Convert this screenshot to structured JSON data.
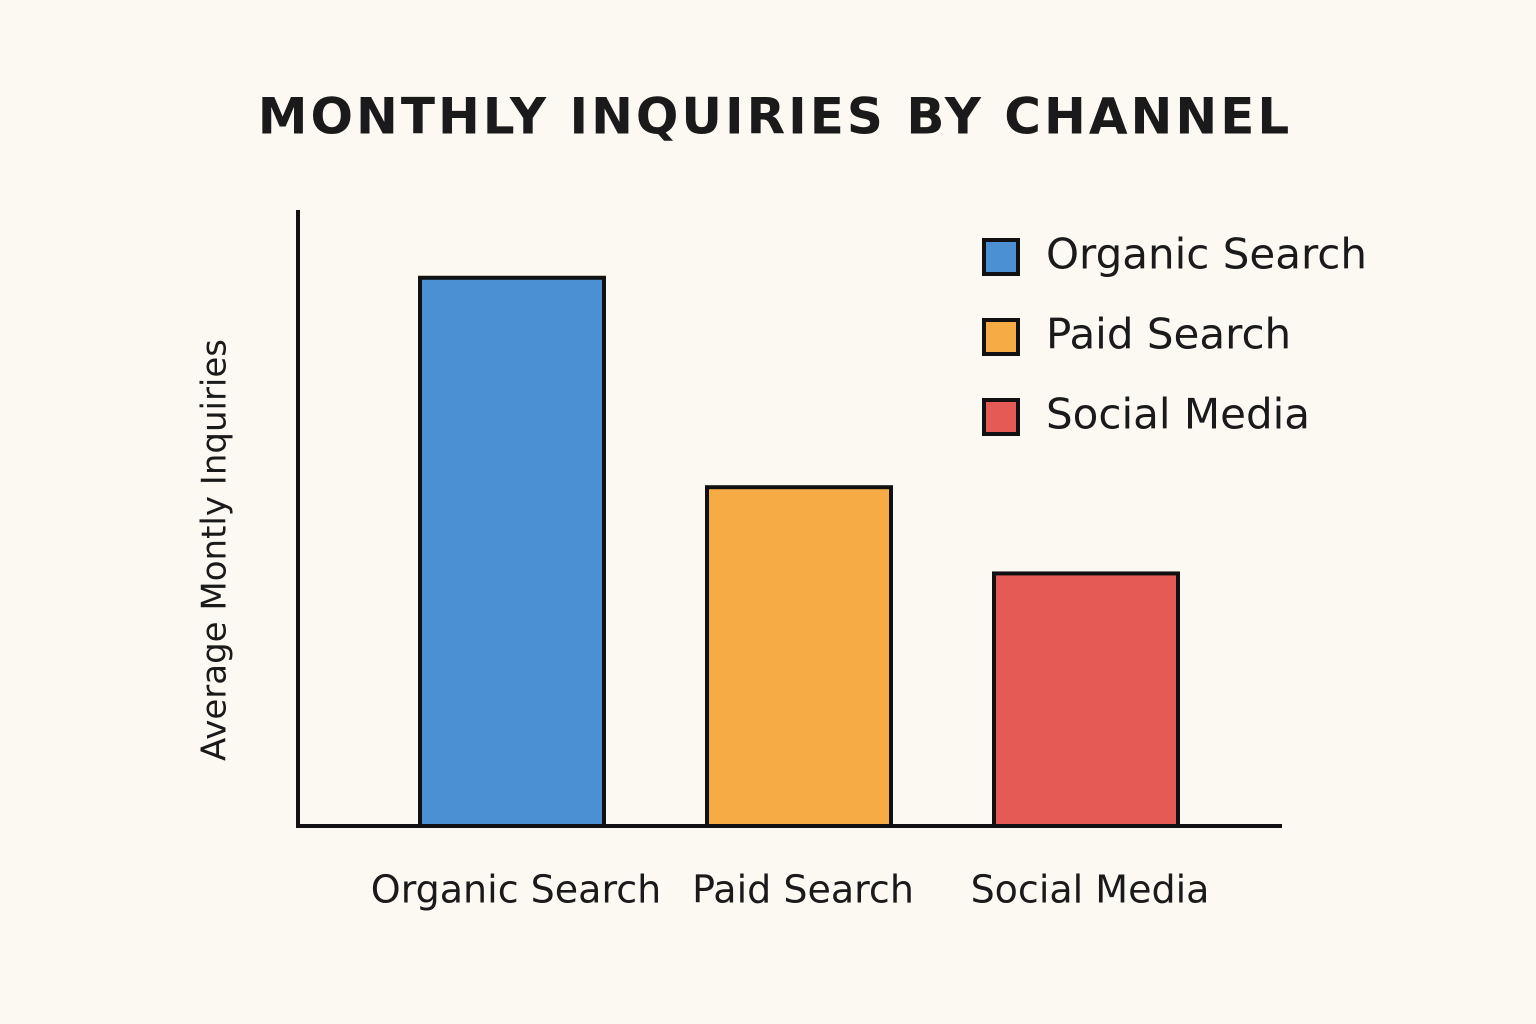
{
  "chart_data": {
    "type": "bar",
    "title": "MONTHLY INQUIRIES BY CHANNEL",
    "y_label": "Average Montly Inquiries",
    "categories": [
      "Organic Search",
      "Paid Search",
      "Social Media"
    ],
    "values": [
      89,
      55,
      41
    ],
    "colors": [
      "#4a90d2",
      "#f6ab45",
      "#e65a55"
    ],
    "ylim": [
      0,
      100
    ],
    "legend": "upper right"
  }
}
